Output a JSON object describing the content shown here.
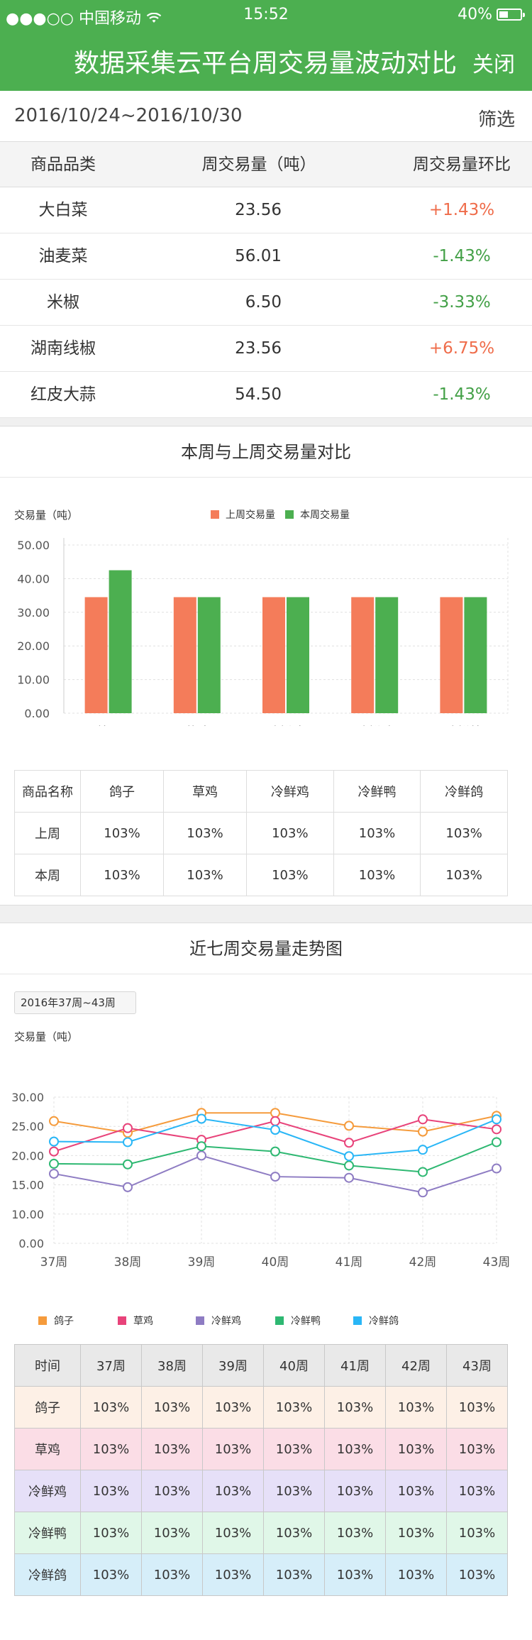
{
  "status_bar": {
    "signal": "●●●○○",
    "carrier": "中国移动",
    "wifi_icon": "wifi-icon",
    "time": "15:52",
    "battery": "40%",
    "battery_level": 0.4
  },
  "nav": {
    "title": "数据采集云平台周交易量波动对比",
    "close_label": "关闭"
  },
  "date_range": {
    "text": "2016/10/24~2016/10/30",
    "filter_label": "筛选"
  },
  "summary": {
    "headers": [
      "商品品类",
      "周交易量（吨）",
      "周交易量环比"
    ],
    "rows": [
      {
        "name": "大白菜",
        "volume": "23.56",
        "change": "+1.43%",
        "trend": "up"
      },
      {
        "name": "油麦菜",
        "volume": "56.01",
        "change": "-1.43%",
        "trend": "down"
      },
      {
        "name": "米椒",
        "volume": "6.50",
        "change": "-3.33%",
        "trend": "down"
      },
      {
        "name": "湖南线椒",
        "volume": "23.56",
        "change": "+6.75%",
        "trend": "up"
      },
      {
        "name": "红皮大蒜",
        "volume": "54.50",
        "change": "-1.43%",
        "trend": "down"
      }
    ]
  },
  "colors": {
    "brand_green": "#4caf50",
    "last_week": "#f47c5a",
    "this_week": "#4caf50",
    "up": "#ef6c4a",
    "down": "#43a047"
  },
  "bar_section": {
    "title": "本周与上周交易量对比",
    "table": {
      "header": [
        "商品名称",
        "鸽子",
        "草鸡",
        "冷鲜鸡",
        "冷鲜鸭",
        "冷鲜鸽"
      ],
      "rows": [
        [
          "上周",
          "103%",
          "103%",
          "103%",
          "103%",
          "103%"
        ],
        [
          "本周",
          "103%",
          "103%",
          "103%",
          "103%",
          "103%"
        ]
      ]
    }
  },
  "line_section": {
    "title": "近七周交易量走势图",
    "range_label": "2016年37周~43周",
    "table": {
      "header": [
        "时间",
        "37周",
        "38周",
        "39周",
        "40周",
        "41周",
        "42周",
        "43周"
      ],
      "rows": [
        [
          "鸽子",
          "103%",
          "103%",
          "103%",
          "103%",
          "103%",
          "103%",
          "103%"
        ],
        [
          "草鸡",
          "103%",
          "103%",
          "103%",
          "103%",
          "103%",
          "103%",
          "103%"
        ],
        [
          "冷鲜鸡",
          "103%",
          "103%",
          "103%",
          "103%",
          "103%",
          "103%",
          "103%"
        ],
        [
          "冷鲜鸭",
          "103%",
          "103%",
          "103%",
          "103%",
          "103%",
          "103%",
          "103%"
        ],
        [
          "冷鲜鸽",
          "103%",
          "103%",
          "103%",
          "103%",
          "103%",
          "103%",
          "103%"
        ]
      ],
      "row_colors": [
        "#fdf0e6",
        "#fbdde6",
        "#e6e0f8",
        "#e0f7e8",
        "#d6eef9"
      ]
    }
  },
  "chart_data": [
    {
      "type": "bar",
      "ylabel": "交易量（吨）",
      "categories": [
        "鸽子",
        "草鸡",
        "冷鲜鸡",
        "冷鲜鸭",
        "冷鲜鸽"
      ],
      "series": [
        {
          "name": "上周交易量",
          "color": "#f47c5a",
          "values": [
            34.5,
            34.5,
            34.5,
            34.5,
            34.5
          ]
        },
        {
          "name": "本周交易量",
          "color": "#4caf50",
          "values": [
            42.5,
            34.5,
            34.5,
            34.5,
            34.5
          ]
        }
      ],
      "yticks": [
        "0.00",
        "10.00",
        "20.00",
        "30.00",
        "40.00",
        "50.00"
      ],
      "ylim": [
        0,
        50
      ],
      "legend_position": "top-center",
      "grid": true
    },
    {
      "type": "line",
      "ylabel": "交易量（吨）",
      "x": [
        "37周",
        "38周",
        "39周",
        "40周",
        "41周",
        "42周",
        "43周"
      ],
      "series": [
        {
          "name": "鸽子",
          "color": "#f59b3c",
          "values": [
            25.9,
            23.9,
            27.3,
            27.3,
            25.1,
            24.1,
            26.8
          ]
        },
        {
          "name": "草鸡",
          "color": "#e8437a",
          "values": [
            20.7,
            24.7,
            22.7,
            25.9,
            22.2,
            26.2,
            24.5
          ]
        },
        {
          "name": "冷鲜鸡",
          "color": "#8e7cc3",
          "values": [
            16.9,
            14.6,
            20.0,
            16.4,
            16.2,
            13.7,
            17.8
          ]
        },
        {
          "name": "冷鲜鸭",
          "color": "#2eb872",
          "values": [
            18.6,
            18.5,
            21.6,
            20.7,
            18.3,
            17.2,
            22.3
          ]
        },
        {
          "name": "冷鲜鸽",
          "color": "#29b6f6",
          "values": [
            22.4,
            22.3,
            26.3,
            24.4,
            19.9,
            21.0,
            26.2
          ]
        }
      ],
      "yticks": [
        "0.00",
        "10.00",
        "15.00",
        "20.00",
        "25.00",
        "30.00"
      ],
      "ylim": [
        0,
        30
      ],
      "legend_position": "bottom",
      "grid": true
    }
  ]
}
